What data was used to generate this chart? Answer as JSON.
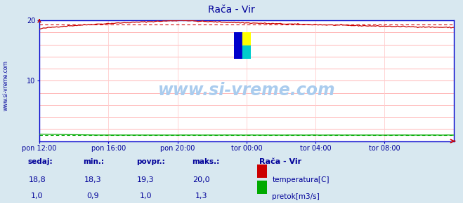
{
  "title": "Rača - Vir",
  "title_color": "#000099",
  "bg_color": "#d8e8f0",
  "plot_bg_color": "#ffffff",
  "grid_color": "#ffaaaa",
  "grid_color_v": "#ffcccc",
  "border_color": "#0000cc",
  "x_ticks_labels": [
    "pon 12:00",
    "pon 16:00",
    "pon 20:00",
    "tor 00:00",
    "tor 04:00",
    "tor 08:00"
  ],
  "x_ticks_pos": [
    0.0,
    0.1667,
    0.3333,
    0.5,
    0.6667,
    0.8333
  ],
  "ylim": [
    0,
    20
  ],
  "y_ticks_shown": [
    10,
    20
  ],
  "y_ticks_all": [
    0,
    2,
    4,
    6,
    8,
    10,
    12,
    14,
    16,
    18,
    20
  ],
  "temp_color": "#cc0000",
  "flow_color": "#00aa00",
  "watermark_text": "www.si-vreme.com",
  "watermark_color": "#aaccee",
  "n_points": 288,
  "temp_min": 18.3,
  "temp_max": 20.0,
  "temp_avg": 19.3,
  "temp_cur": 18.8,
  "flow_min": 0.9,
  "flow_max": 1.3,
  "flow_avg": 1.0,
  "flow_cur": 1.0,
  "legend_title": "Rača - Vir",
  "legend_title_color": "#000099",
  "label_color": "#000099",
  "footer_label_color": "#000099",
  "sidebar_text": "www.si-vreme.com",
  "sidebar_color": "#000099",
  "logo_colors": [
    "#0000cc",
    "#ffff00",
    "#00cccc"
  ],
  "arrow_color": "#cc0000"
}
